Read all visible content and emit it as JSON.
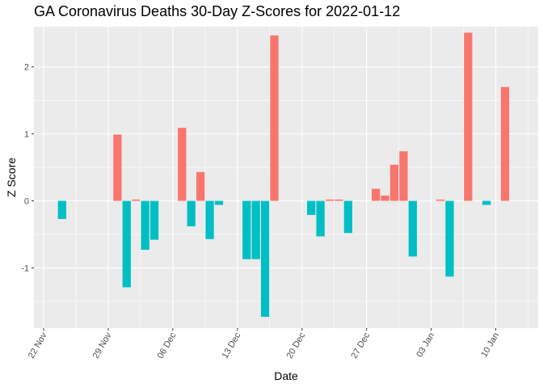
{
  "chart_data": {
    "type": "bar",
    "title": "GA Coronavirus Deaths 30-Day Z-Scores for 2022-01-12",
    "xlabel": "Date",
    "ylabel": "Z Score",
    "x_ticks": [
      "22 Nov",
      "29 Nov",
      "06 Dec",
      "13 Dec",
      "20 Dec",
      "27 Dec",
      "03 Jan",
      "10 Jan"
    ],
    "y_ticks": [
      -1,
      0,
      1,
      2
    ],
    "ylim": [
      -1.9,
      2.6
    ],
    "grid": true,
    "legend": "none",
    "colors": {
      "positive": "#F8766D",
      "negative": "#00BFC4",
      "panel": "#EBEBEB",
      "grid": "#FFFFFF"
    },
    "values": [
      {
        "date": "2021-11-24",
        "z": -0.27
      },
      {
        "date": "2021-11-30",
        "z": 0.99
      },
      {
        "date": "2021-12-01",
        "z": -1.29
      },
      {
        "date": "2021-12-02",
        "z": 0.02
      },
      {
        "date": "2021-12-03",
        "z": -0.73
      },
      {
        "date": "2021-12-04",
        "z": -0.58
      },
      {
        "date": "2021-12-07",
        "z": 1.09
      },
      {
        "date": "2021-12-08",
        "z": -0.38
      },
      {
        "date": "2021-12-09",
        "z": 0.43
      },
      {
        "date": "2021-12-10",
        "z": -0.57
      },
      {
        "date": "2021-12-11",
        "z": -0.06
      },
      {
        "date": "2021-12-14",
        "z": -0.87
      },
      {
        "date": "2021-12-15",
        "z": -0.87
      },
      {
        "date": "2021-12-16",
        "z": -1.73
      },
      {
        "date": "2021-12-17",
        "z": 2.47
      },
      {
        "date": "2021-12-21",
        "z": -0.21
      },
      {
        "date": "2021-12-22",
        "z": -0.53
      },
      {
        "date": "2021-12-23",
        "z": 0.02
      },
      {
        "date": "2021-12-24",
        "z": 0.02
      },
      {
        "date": "2021-12-25",
        "z": -0.48
      },
      {
        "date": "2021-12-28",
        "z": 0.18
      },
      {
        "date": "2021-12-29",
        "z": 0.08
      },
      {
        "date": "2021-12-30",
        "z": 0.54
      },
      {
        "date": "2021-12-31",
        "z": 0.74
      },
      {
        "date": "2022-01-01",
        "z": -0.83
      },
      {
        "date": "2022-01-04",
        "z": 0.02
      },
      {
        "date": "2022-01-05",
        "z": -1.13
      },
      {
        "date": "2022-01-07",
        "z": 2.51
      },
      {
        "date": "2022-01-09",
        "z": -0.06
      },
      {
        "date": "2022-01-11",
        "z": 1.7
      }
    ]
  }
}
